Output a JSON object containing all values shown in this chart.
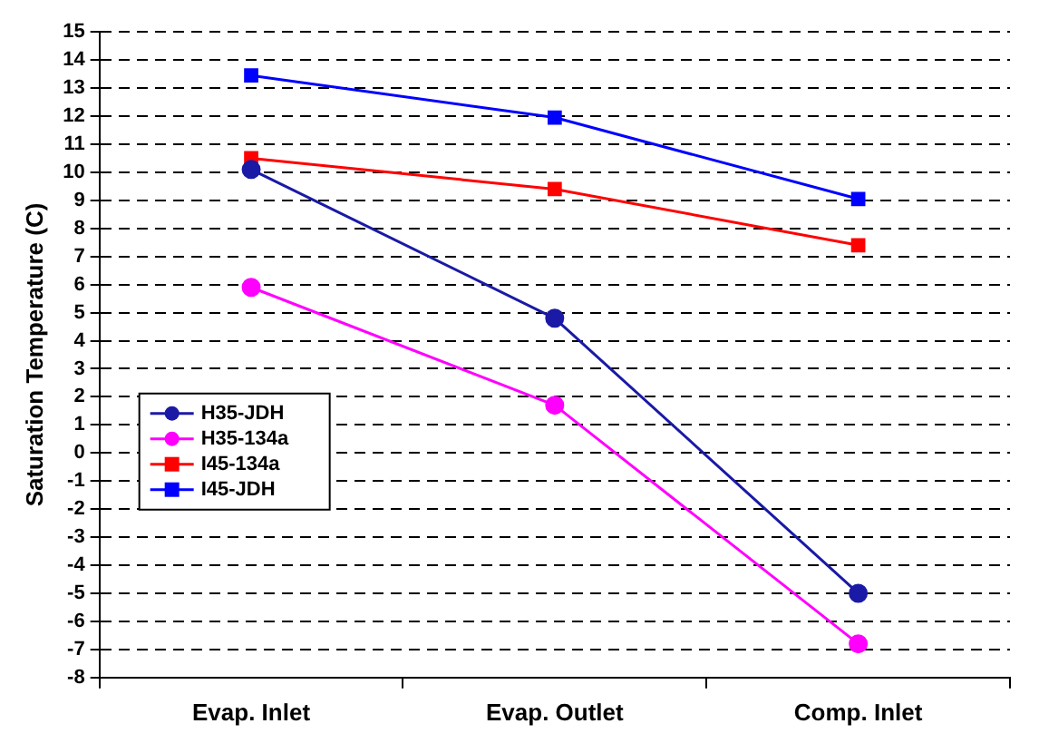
{
  "chart_data": {
    "type": "line",
    "ylabel": "Saturation Temperature (C)",
    "categories": [
      "Evap. Inlet",
      "Evap. Outlet",
      "Comp. Inlet"
    ],
    "series": [
      {
        "name": "H35-JDH",
        "color": "#1a1aa6",
        "values": [
          10.1,
          4.8,
          -5.0
        ],
        "marker": "circle"
      },
      {
        "name": "H35-134a",
        "color": "#ff00ff",
        "values": [
          5.9,
          1.7,
          -6.8
        ],
        "marker": "circle"
      },
      {
        "name": "I45-134a",
        "color": "#ff0000",
        "values": [
          10.5,
          9.4,
          7.4
        ],
        "marker": "square"
      },
      {
        "name": "I45-JDH",
        "color": "#0000ff",
        "values": [
          13.45,
          11.95,
          9.05
        ],
        "marker": "square"
      }
    ],
    "ylim": [
      -8,
      15
    ],
    "yticks": [
      -8,
      -7,
      -6,
      -5,
      -4,
      -3,
      -2,
      -1,
      0,
      1,
      2,
      3,
      4,
      5,
      6,
      7,
      8,
      9,
      10,
      11,
      12,
      13,
      14,
      15
    ],
    "grid": "y",
    "legend": "left"
  }
}
